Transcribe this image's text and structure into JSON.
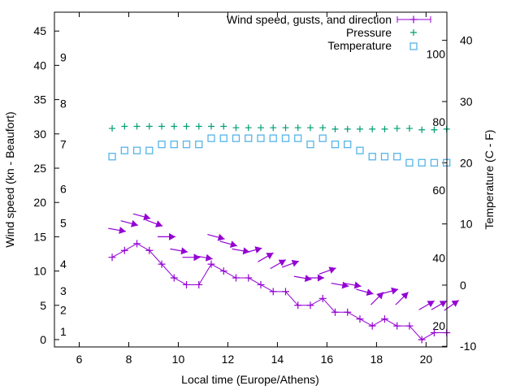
{
  "colors": {
    "wind": "#9400d3",
    "pressure": "#009e73",
    "temperature": "#56b4e9",
    "axis": "#000000"
  },
  "chart_data": {
    "type": "line",
    "xlabel": "Local time (Europe/Athens)",
    "ylabel": "Wind speed (kn - Beaufort)",
    "y2label": "Temperature (C - F)",
    "xlim": [
      5,
      20.84
    ],
    "ylim": [
      -1.07,
      47.75
    ],
    "y2lim": [
      -10.1,
      44.6
    ],
    "xticks": [
      6,
      8,
      10,
      12,
      14,
      16,
      18,
      20
    ],
    "yticks": [
      0,
      5,
      10,
      15,
      20,
      25,
      30,
      35,
      40,
      45
    ],
    "y2ticks": [
      -10,
      0,
      10,
      20,
      30,
      40
    ],
    "beaufort_labels": [
      {
        "label": "1",
        "kn": 1.2
      },
      {
        "label": "2",
        "kn": 4.3
      },
      {
        "label": "3",
        "kn": 7.1
      },
      {
        "label": "4",
        "kn": 11
      },
      {
        "label": "5",
        "kn": 17
      },
      {
        "label": "6",
        "kn": 22
      },
      {
        "label": "7",
        "kn": 28.5
      },
      {
        "label": "8",
        "kn": 34.4
      },
      {
        "label": "9",
        "kn": 41.2
      }
    ],
    "fahrenheit_labels": [
      {
        "label": "20",
        "f": 20
      },
      {
        "label": "40",
        "f": 40
      },
      {
        "label": "60",
        "f": 60
      },
      {
        "label": "80",
        "f": 80
      },
      {
        "label": "100",
        "f": 100
      }
    ],
    "legend": {
      "placement": "top-right",
      "entries": [
        "Wind speed, gusts, and direction",
        "Pressure",
        "Temperature"
      ]
    },
    "x": [
      7.33,
      7.83,
      8.33,
      8.83,
      9.33,
      9.83,
      10.33,
      10.83,
      11.33,
      11.83,
      12.33,
      12.83,
      13.33,
      13.83,
      14.33,
      14.83,
      15.33,
      15.83,
      16.33,
      16.83,
      17.33,
      17.83,
      18.33,
      18.83,
      19.33,
      19.83,
      20.33,
      20.83
    ],
    "series": [
      {
        "name": "Wind speed",
        "axis": "y",
        "values": [
          12,
          13,
          14,
          13,
          11,
          9,
          8,
          8,
          11,
          10,
          9,
          9,
          8,
          7,
          7,
          5,
          5,
          6,
          4,
          4,
          3,
          2,
          3,
          2,
          2,
          0,
          1,
          1
        ]
      },
      {
        "name": "Gusts",
        "axis": "y",
        "values": [
          16,
          17,
          18,
          17,
          15,
          13,
          12,
          12,
          15,
          14,
          13,
          13,
          12,
          11,
          11,
          9,
          9,
          10,
          8,
          8,
          7,
          6,
          7,
          6,
          null,
          5,
          5,
          5
        ]
      },
      {
        "name": "Direction (arrow angle, deg)",
        "axis": "none",
        "values": [
          -10,
          -15,
          -15,
          -20,
          0,
          -10,
          0,
          -10,
          -15,
          -15,
          -10,
          15,
          30,
          30,
          20,
          -10,
          0,
          20,
          -10,
          -10,
          -15,
          45,
          15,
          45,
          0,
          30,
          30,
          35
        ]
      },
      {
        "name": "Pressure",
        "axis": "y",
        "values": [
          30.8,
          31.1,
          31.1,
          31.1,
          31.1,
          31.1,
          31.1,
          31.1,
          31.1,
          31.1,
          30.9,
          30.9,
          30.9,
          30.9,
          30.9,
          30.9,
          30.9,
          30.9,
          30.7,
          30.7,
          30.7,
          30.7,
          30.7,
          30.8,
          30.8,
          30.6,
          30.6,
          30.7
        ]
      },
      {
        "name": "Temperature",
        "axis": "y2",
        "values": [
          21,
          22,
          22,
          22,
          23,
          23,
          23,
          23,
          24,
          24,
          24,
          24,
          24,
          24,
          24,
          24,
          23,
          24,
          23,
          23,
          22,
          21,
          21,
          21,
          20,
          20,
          20,
          20
        ]
      }
    ]
  }
}
